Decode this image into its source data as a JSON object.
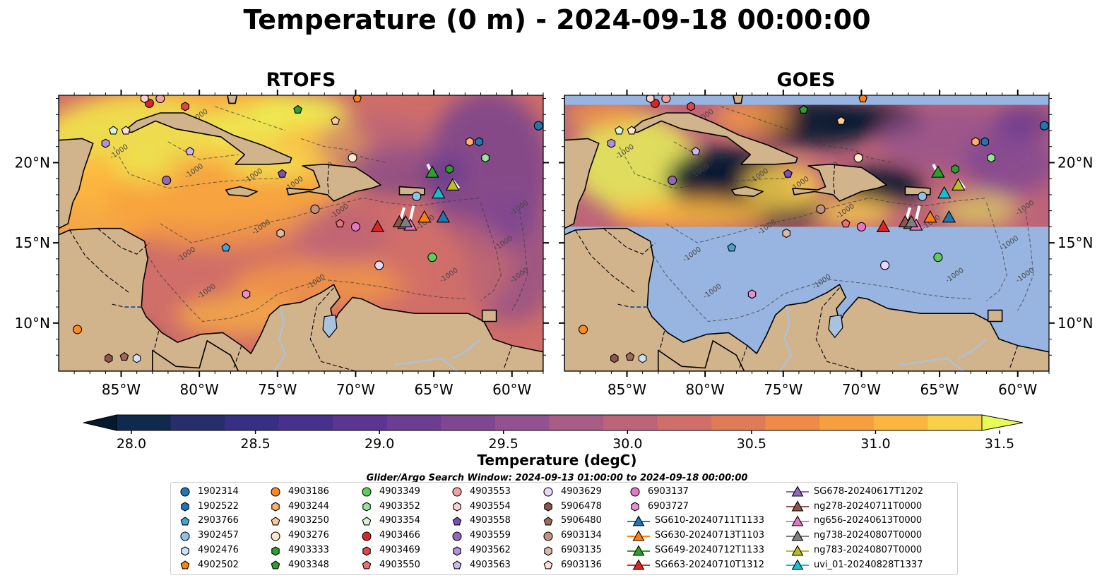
{
  "title": "Temperature (0 m) - 2024-09-18 00:00:00",
  "panels": [
    {
      "title": "RTOFS",
      "mode": "model"
    },
    {
      "title": "GOES",
      "mode": "satellite"
    }
  ],
  "map": {
    "lon_range": [
      -89,
      -58
    ],
    "lat_range": [
      7,
      24.2
    ],
    "lon_ticks": [
      {
        "value": -85,
        "label": "85°W"
      },
      {
        "value": -80,
        "label": "80°W"
      },
      {
        "value": -75,
        "label": "75°W"
      },
      {
        "value": -70,
        "label": "70°W"
      },
      {
        "value": -65,
        "label": "65°W"
      },
      {
        "value": -60,
        "label": "60°W"
      }
    ],
    "lat_ticks": [
      {
        "value": 20,
        "label": "20°N"
      },
      {
        "value": 15,
        "label": "15°N"
      },
      {
        "value": 10,
        "label": "10°N"
      }
    ],
    "contour_label": "-1000",
    "land_color": "#d2b48c",
    "nodata_color": "#97b5e0",
    "goes_coverage_lat_range": [
      16.0,
      23.6
    ]
  },
  "colorbar": {
    "label": "Temperature (degC)",
    "min": 28.0,
    "max": 31.5,
    "tick_labels": [
      "28.0",
      "28.5",
      "29.0",
      "29.5",
      "30.0",
      "30.5",
      "31.0",
      "31.5"
    ],
    "colors": [
      "#0f2a4d",
      "#262e6b",
      "#372f85",
      "#48308f",
      "#5c3592",
      "#6d3d93",
      "#7f4792",
      "#93528f",
      "#a85c86",
      "#bd6479",
      "#d06e69",
      "#e07b58",
      "#ee8b48",
      "#f79e3f",
      "#fcb53e",
      "#f8d04a",
      "#e3f04e"
    ],
    "under_color": "#04182e",
    "over_color": "#e8fa55"
  },
  "search_window": "Glider/Argo Search Window: 2024-09-13 01:00:00 to 2024-09-18 00:00:00",
  "legend": {
    "columns": [
      [
        {
          "label": "1902314",
          "marker": "circle",
          "color": "#1f77b4"
        },
        {
          "label": "1902522",
          "marker": "hexagon",
          "color": "#1f77b4"
        },
        {
          "label": "2903766",
          "marker": "pentagon",
          "color": "#4b9fd1"
        },
        {
          "label": "3902457",
          "marker": "circle",
          "color": "#8fc2ea"
        },
        {
          "label": "4902476",
          "marker": "hexagon",
          "color": "#c9e3f7"
        },
        {
          "label": "4902502",
          "marker": "pentagon",
          "color": "#ff7f0e"
        }
      ],
      [
        {
          "label": "4903186",
          "marker": "circle",
          "color": "#ff8a1f"
        },
        {
          "label": "4903244",
          "marker": "hexagon",
          "color": "#ffb066"
        },
        {
          "label": "4903250",
          "marker": "pentagon",
          "color": "#ffc99a"
        },
        {
          "label": "4903276",
          "marker": "circle",
          "color": "#ffe6cc"
        },
        {
          "label": "4903333",
          "marker": "hexagon",
          "color": "#2ca02c"
        },
        {
          "label": "4903348",
          "marker": "pentagon",
          "color": "#2ca02c"
        }
      ],
      [
        {
          "label": "4903349",
          "marker": "circle",
          "color": "#5ecb5e"
        },
        {
          "label": "4903352",
          "marker": "hexagon",
          "color": "#98e598"
        },
        {
          "label": "4903354",
          "marker": "pentagon",
          "color": "#d5f5d5"
        },
        {
          "label": "4903466",
          "marker": "circle",
          "color": "#d62728"
        },
        {
          "label": "4903469",
          "marker": "hexagon",
          "color": "#e0474a"
        },
        {
          "label": "4903550",
          "marker": "pentagon",
          "color": "#f07070"
        }
      ],
      [
        {
          "label": "4903553",
          "marker": "circle",
          "color": "#f4a0a0"
        },
        {
          "label": "4903554",
          "marker": "hexagon",
          "color": "#fcd0d0"
        },
        {
          "label": "4903558",
          "marker": "pentagon",
          "color": "#7b4fb8"
        },
        {
          "label": "4903559",
          "marker": "circle",
          "color": "#9467bd"
        },
        {
          "label": "4903562",
          "marker": "hexagon",
          "color": "#b08fdc"
        },
        {
          "label": "4903563",
          "marker": "pentagon",
          "color": "#cdb5ef"
        }
      ],
      [
        {
          "label": "4903629",
          "marker": "circle",
          "color": "#e8d8f8"
        },
        {
          "label": "5906478",
          "marker": "hexagon",
          "color": "#8c564b"
        },
        {
          "label": "5906480",
          "marker": "pentagon",
          "color": "#a06a5a"
        },
        {
          "label": "6903134",
          "marker": "circle",
          "color": "#c49080"
        },
        {
          "label": "6903135",
          "marker": "hexagon",
          "color": "#e0b8a8"
        },
        {
          "label": "6903136",
          "marker": "pentagon",
          "color": "#fbe2d6"
        }
      ],
      [
        {
          "label": "6903137",
          "marker": "circle",
          "color": "#e377c2"
        },
        {
          "label": "6903727",
          "marker": "hexagon",
          "color": "#e98fd0"
        },
        {
          "label": "SG610-20240711T1133",
          "marker": "triangle-line",
          "color": "#1f77b4"
        },
        {
          "label": "SG630-20240713T1103",
          "marker": "triangle-line",
          "color": "#ff7f0e"
        },
        {
          "label": "SG649-20240712T1133",
          "marker": "triangle-line",
          "color": "#2ca02c"
        },
        {
          "label": "SG663-20240710T1312",
          "marker": "triangle-line",
          "color": "#d62728"
        }
      ],
      [
        {
          "label": "SG678-20240617T1202",
          "marker": "triangle-line",
          "color": "#9467bd"
        },
        {
          "label": "ng278-20240711T0000",
          "marker": "triangle-line",
          "color": "#8c564b"
        },
        {
          "label": "ng656-20240613T0000",
          "marker": "triangle-line",
          "color": "#e377c2"
        },
        {
          "label": "ng738-20240807T0000",
          "marker": "triangle-line",
          "color": "#7f7f7f"
        },
        {
          "label": "ng783-20240807T0000",
          "marker": "triangle-line",
          "color": "#bcbd22"
        },
        {
          "label": "uvi_01-20240828T1337",
          "marker": "triangle-line",
          "color": "#17becf"
        }
      ]
    ]
  },
  "platforms": [
    {
      "id": "1902314",
      "lon": -58.3,
      "lat": 22.3,
      "marker": "circle",
      "color": "#1f77b4"
    },
    {
      "id": "1902522",
      "lon": -62.1,
      "lat": 21.3,
      "marker": "hexagon",
      "color": "#1f77b4"
    },
    {
      "id": "2903766",
      "lon": -78.3,
      "lat": 14.7,
      "marker": "pentagon",
      "color": "#4b9fd1"
    },
    {
      "id": "3902457",
      "lon": -66.1,
      "lat": 17.9,
      "marker": "circle",
      "color": "#8fc2ea"
    },
    {
      "id": "4902476",
      "lon": -84.0,
      "lat": 7.8,
      "marker": "hexagon",
      "color": "#c9e3f7"
    },
    {
      "id": "4902502",
      "lon": -69.9,
      "lat": 24.0,
      "marker": "pentagon",
      "color": "#ff7f0e"
    },
    {
      "id": "4903186",
      "lon": -87.8,
      "lat": 9.6,
      "marker": "circle",
      "color": "#ff8a1f"
    },
    {
      "id": "4903244",
      "lon": -62.7,
      "lat": 21.3,
      "marker": "hexagon",
      "color": "#ffb066"
    },
    {
      "id": "4903250",
      "lon": -71.3,
      "lat": 22.6,
      "marker": "pentagon",
      "color": "#ffc99a"
    },
    {
      "id": "4903276",
      "lon": -70.2,
      "lat": 20.3,
      "marker": "circle",
      "color": "#ffe6cc"
    },
    {
      "id": "4903333",
      "lon": -64.0,
      "lat": 19.6,
      "marker": "hexagon",
      "color": "#2ca02c"
    },
    {
      "id": "4903348",
      "lon": -73.7,
      "lat": 23.3,
      "marker": "pentagon",
      "color": "#2ca02c"
    },
    {
      "id": "4903349",
      "lon": -65.1,
      "lat": 14.1,
      "marker": "circle",
      "color": "#5ecb5e"
    },
    {
      "id": "4903352",
      "lon": -61.7,
      "lat": 20.3,
      "marker": "hexagon",
      "color": "#98e598"
    },
    {
      "id": "4903354",
      "lon": -85.5,
      "lat": 22.0,
      "marker": "pentagon",
      "color": "#d5f5d5"
    },
    {
      "id": "4903466",
      "lon": -83.2,
      "lat": 23.7,
      "marker": "circle",
      "color": "#d62728"
    },
    {
      "id": "4903469",
      "lon": -80.9,
      "lat": 23.5,
      "marker": "hexagon",
      "color": "#e0474a"
    },
    {
      "id": "4903550",
      "lon": -71.0,
      "lat": 16.2,
      "marker": "pentagon",
      "color": "#f07070"
    },
    {
      "id": "4903553",
      "lon": -82.5,
      "lat": 24.0,
      "marker": "circle",
      "color": "#f4a0a0"
    },
    {
      "id": "4903554",
      "lon": -83.5,
      "lat": 24.0,
      "marker": "hexagon",
      "color": "#fcd0d0"
    },
    {
      "id": "4903558",
      "lon": -74.7,
      "lat": 19.3,
      "marker": "pentagon",
      "color": "#7b4fb8"
    },
    {
      "id": "4903559",
      "lon": -82.1,
      "lat": 18.9,
      "marker": "circle",
      "color": "#9467bd"
    },
    {
      "id": "4903562",
      "lon": -86.0,
      "lat": 21.2,
      "marker": "hexagon",
      "color": "#b08fdc"
    },
    {
      "id": "4903563",
      "lon": -80.6,
      "lat": 20.7,
      "marker": "pentagon",
      "color": "#cdb5ef"
    },
    {
      "id": "4903629",
      "lon": -68.5,
      "lat": 13.6,
      "marker": "circle",
      "color": "#e8d8f8"
    },
    {
      "id": "5906478",
      "lon": -85.8,
      "lat": 7.8,
      "marker": "hexagon",
      "color": "#8c564b"
    },
    {
      "id": "5906480",
      "lon": -84.8,
      "lat": 7.9,
      "marker": "pentagon",
      "color": "#a06a5a"
    },
    {
      "id": "6903134",
      "lon": -72.6,
      "lat": 17.1,
      "marker": "circle",
      "color": "#c49080"
    },
    {
      "id": "6903135",
      "lon": -74.8,
      "lat": 15.6,
      "marker": "hexagon",
      "color": "#e0b8a8"
    },
    {
      "id": "6903136",
      "lon": -84.7,
      "lat": 22.0,
      "marker": "pentagon",
      "color": "#fbe2d6"
    },
    {
      "id": "6903137",
      "lon": -70.0,
      "lat": 16.0,
      "marker": "circle",
      "color": "#e377c2"
    },
    {
      "id": "6903727",
      "lon": -77.0,
      "lat": 11.8,
      "marker": "hexagon",
      "color": "#e98fd0"
    },
    {
      "id": "SG610-20240711T1133",
      "lon": -64.4,
      "lat": 16.6,
      "marker": "triangle",
      "color": "#1f77b4"
    },
    {
      "id": "SG630-20240713T1103",
      "lon": -65.6,
      "lat": 16.6,
      "marker": "triangle",
      "color": "#ff7f0e"
    },
    {
      "id": "SG649-20240712T1133",
      "lon": -65.1,
      "lat": 19.4,
      "marker": "triangle",
      "color": "#2ca02c"
    },
    {
      "id": "SG663-20240710T1312",
      "lon": -68.6,
      "lat": 16.0,
      "marker": "triangle",
      "color": "#d62728"
    },
    {
      "id": "SG678-20240617T1202",
      "lon": -66.9,
      "lat": 16.2,
      "marker": "triangle",
      "color": "#9467bd"
    },
    {
      "id": "ng278-20240711T0000",
      "lon": -67.2,
      "lat": 16.3,
      "marker": "triangle",
      "color": "#8c564b"
    },
    {
      "id": "ng656-20240613T0000",
      "lon": -66.5,
      "lat": 16.1,
      "marker": "triangle",
      "color": "#e377c2"
    },
    {
      "id": "ng738-20240807T0000",
      "lon": -66.8,
      "lat": 16.3,
      "marker": "triangle",
      "color": "#7f7f7f"
    },
    {
      "id": "ng783-20240807T0000",
      "lon": -63.8,
      "lat": 18.6,
      "marker": "triangle",
      "color": "#bcbd22"
    },
    {
      "id": "uvi_01-20240828T1337",
      "lon": -64.7,
      "lat": 18.1,
      "marker": "triangle",
      "color": "#17becf"
    }
  ]
}
